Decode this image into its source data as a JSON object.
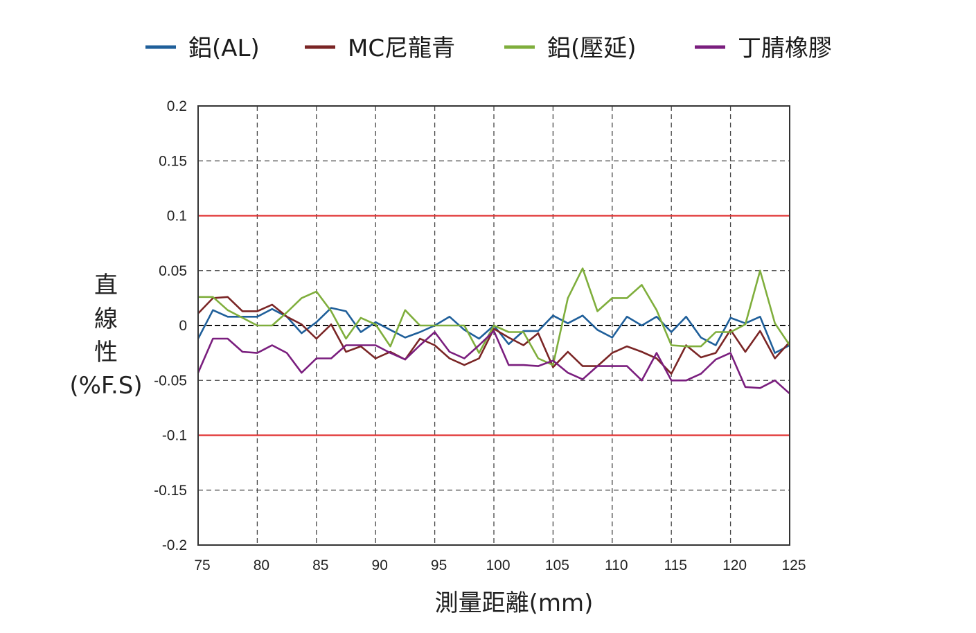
{
  "chart_data": {
    "type": "line",
    "xlabel": "測量距離(mm)",
    "ylabel": [
      "直",
      "線",
      "性",
      "(%F.S)"
    ],
    "xlim": [
      75,
      125
    ],
    "ylim": [
      -0.2,
      0.2
    ],
    "x_ticks": [
      75,
      80,
      85,
      90,
      95,
      100,
      105,
      110,
      115,
      120,
      125
    ],
    "x_tick_labels": [
      "75",
      "80",
      "85",
      "90",
      "95",
      "100",
      "105",
      "110",
      "115",
      "120",
      "125"
    ],
    "y_ticks": [
      0.2,
      0.15,
      0.1,
      0.05,
      0,
      -0.05,
      -0.1,
      -0.15,
      -0.2
    ],
    "y_tick_labels": [
      "0.2",
      "0.15",
      "0.1",
      "0.05",
      "0",
      "-0.05",
      "-0.1",
      "-0.15",
      "-0.2"
    ],
    "grid": true,
    "legend_position": "top",
    "limit_lines": {
      "values": [
        0.1,
        -0.1
      ],
      "color": "#e03030"
    },
    "zero_line_color": "#111111",
    "x": [
      75,
      76.25,
      77.5,
      78.75,
      80,
      81.25,
      82.5,
      83.75,
      85,
      86.25,
      87.5,
      88.75,
      90,
      91.25,
      92.5,
      93.75,
      95,
      96.25,
      97.5,
      98.75,
      100,
      101.25,
      102.5,
      103.75,
      105,
      106.25,
      107.5,
      108.75,
      110,
      111.25,
      112.5,
      113.75,
      115,
      116.25,
      117.5,
      118.75,
      120,
      121.25,
      122.5,
      123.75,
      125
    ],
    "series": [
      {
        "name": "鋁(AL)",
        "color": "#1f5f9a",
        "values": [
          -0.012,
          0.014,
          0.008,
          0.008,
          0.008,
          0.015,
          0.008,
          -0.007,
          0.003,
          0.016,
          0.013,
          -0.006,
          0.003,
          -0.004,
          -0.011,
          -0.006,
          0.0,
          0.008,
          -0.004,
          -0.012,
          0.0,
          -0.017,
          -0.005,
          -0.005,
          0.009,
          0.002,
          0.009,
          -0.004,
          -0.011,
          0.008,
          0.0,
          0.008,
          -0.006,
          0.008,
          -0.011,
          -0.018,
          0.007,
          0.002,
          0.008,
          -0.025,
          -0.018
        ]
      },
      {
        "name": "MC尼龍青",
        "color": "#7a2525",
        "values": [
          0.011,
          0.025,
          0.026,
          0.013,
          0.013,
          0.019,
          0.008,
          0.001,
          -0.012,
          0.001,
          -0.024,
          -0.019,
          -0.03,
          -0.024,
          -0.031,
          -0.012,
          -0.018,
          -0.03,
          -0.036,
          -0.03,
          -0.003,
          -0.011,
          -0.018,
          -0.007,
          -0.038,
          -0.024,
          -0.037,
          -0.037,
          -0.025,
          -0.019,
          -0.024,
          -0.03,
          -0.044,
          -0.018,
          -0.029,
          -0.025,
          -0.004,
          -0.024,
          -0.005,
          -0.03,
          -0.015
        ]
      },
      {
        "name": "鋁(壓延)",
        "color": "#7fae3c",
        "values": [
          0.026,
          0.026,
          0.014,
          0.007,
          0.0,
          0.0,
          0.012,
          0.025,
          0.031,
          0.013,
          -0.012,
          0.007,
          0.001,
          -0.019,
          0.014,
          0.0,
          0.0,
          0.0,
          0.0,
          -0.025,
          0.0,
          -0.006,
          -0.006,
          -0.03,
          -0.036,
          0.025,
          0.052,
          0.013,
          0.025,
          0.025,
          0.037,
          0.014,
          -0.018,
          -0.019,
          -0.019,
          -0.006,
          -0.006,
          0.001,
          0.05,
          0.002,
          -0.018
        ]
      },
      {
        "name": "丁腈橡膠",
        "color": "#7a1e7e",
        "values": [
          -0.043,
          -0.012,
          -0.012,
          -0.024,
          -0.025,
          -0.018,
          -0.025,
          -0.043,
          -0.03,
          -0.03,
          -0.018,
          -0.018,
          -0.018,
          -0.025,
          -0.031,
          -0.018,
          -0.006,
          -0.024,
          -0.03,
          -0.018,
          -0.005,
          -0.036,
          -0.036,
          -0.037,
          -0.032,
          -0.043,
          -0.049,
          -0.037,
          -0.037,
          -0.037,
          -0.05,
          -0.025,
          -0.05,
          -0.05,
          -0.044,
          -0.031,
          -0.025,
          -0.056,
          -0.057,
          -0.05,
          -0.062
        ]
      }
    ]
  }
}
